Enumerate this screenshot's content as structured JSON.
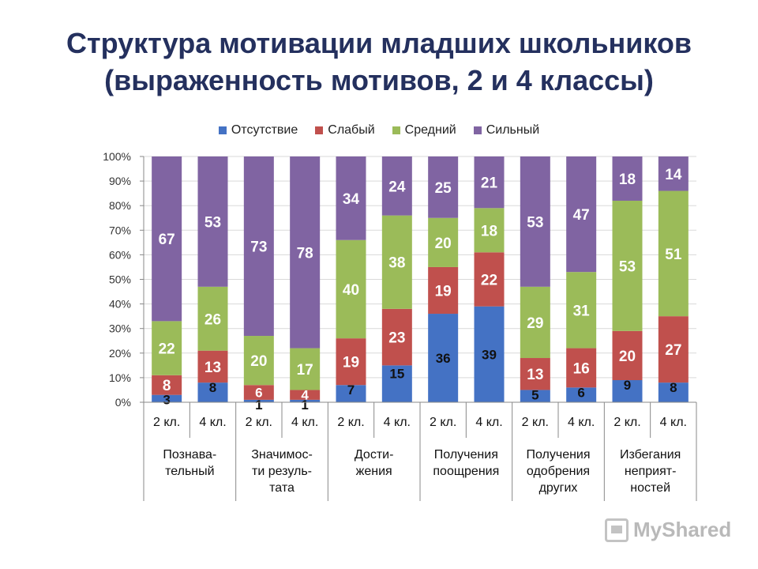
{
  "title": {
    "line1": "Структура мотивации младших школьников",
    "line2": "(выраженность мотивов, 2 и 4 классы)"
  },
  "legend": [
    {
      "name": "Отсутствие",
      "color": "#4472c4"
    },
    {
      "name": "Слабый",
      "color": "#c0504d"
    },
    {
      "name": "Средний",
      "color": "#9bbb59"
    },
    {
      "name": "Сильный",
      "color": "#8064a2"
    }
  ],
  "chart_data": {
    "type": "bar",
    "stacked": true,
    "title": "Структура мотивации младших школьников (выраженность мотивов, 2 и 4 классы)",
    "ylim": [
      0,
      100
    ],
    "yticks": [
      "0%",
      "10%",
      "20%",
      "30%",
      "40%",
      "50%",
      "60%",
      "70%",
      "80%",
      "90%",
      "100%"
    ],
    "categories": [
      "2 кл.",
      "4 кл.",
      "2 кл.",
      "4 кл.",
      "2 кл.",
      "4 кл.",
      "2 кл.",
      "4 кл.",
      "2 кл.",
      "4 кл.",
      "2 кл.",
      "4 кл."
    ],
    "groups": [
      {
        "label": [
          "Познава-",
          "тельный"
        ]
      },
      {
        "label": [
          "Значимос-",
          "ти резуль-",
          "тата"
        ]
      },
      {
        "label": [
          "Дости-",
          "жения"
        ]
      },
      {
        "label": [
          "Получения",
          "поощрения"
        ]
      },
      {
        "label": [
          "Получения",
          "одобрения",
          "других"
        ]
      },
      {
        "label": [
          "Избегания",
          "неприят-",
          "ностей"
        ]
      }
    ],
    "series": [
      {
        "name": "Отсутствие",
        "color": "#4472c4",
        "values": [
          3,
          8,
          1,
          1,
          7,
          15,
          36,
          39,
          5,
          6,
          9,
          8
        ]
      },
      {
        "name": "Слабый",
        "color": "#c0504d",
        "values": [
          8,
          13,
          6,
          4,
          19,
          23,
          19,
          22,
          13,
          16,
          20,
          27
        ]
      },
      {
        "name": "Средний",
        "color": "#9bbb59",
        "values": [
          22,
          26,
          20,
          17,
          40,
          38,
          20,
          18,
          29,
          31,
          53,
          51
        ]
      },
      {
        "name": "Сильный",
        "color": "#8064a2",
        "values": [
          67,
          53,
          73,
          78,
          34,
          24,
          25,
          21,
          53,
          47,
          18,
          14
        ]
      }
    ]
  },
  "watermark": {
    "text": "MyShared"
  }
}
